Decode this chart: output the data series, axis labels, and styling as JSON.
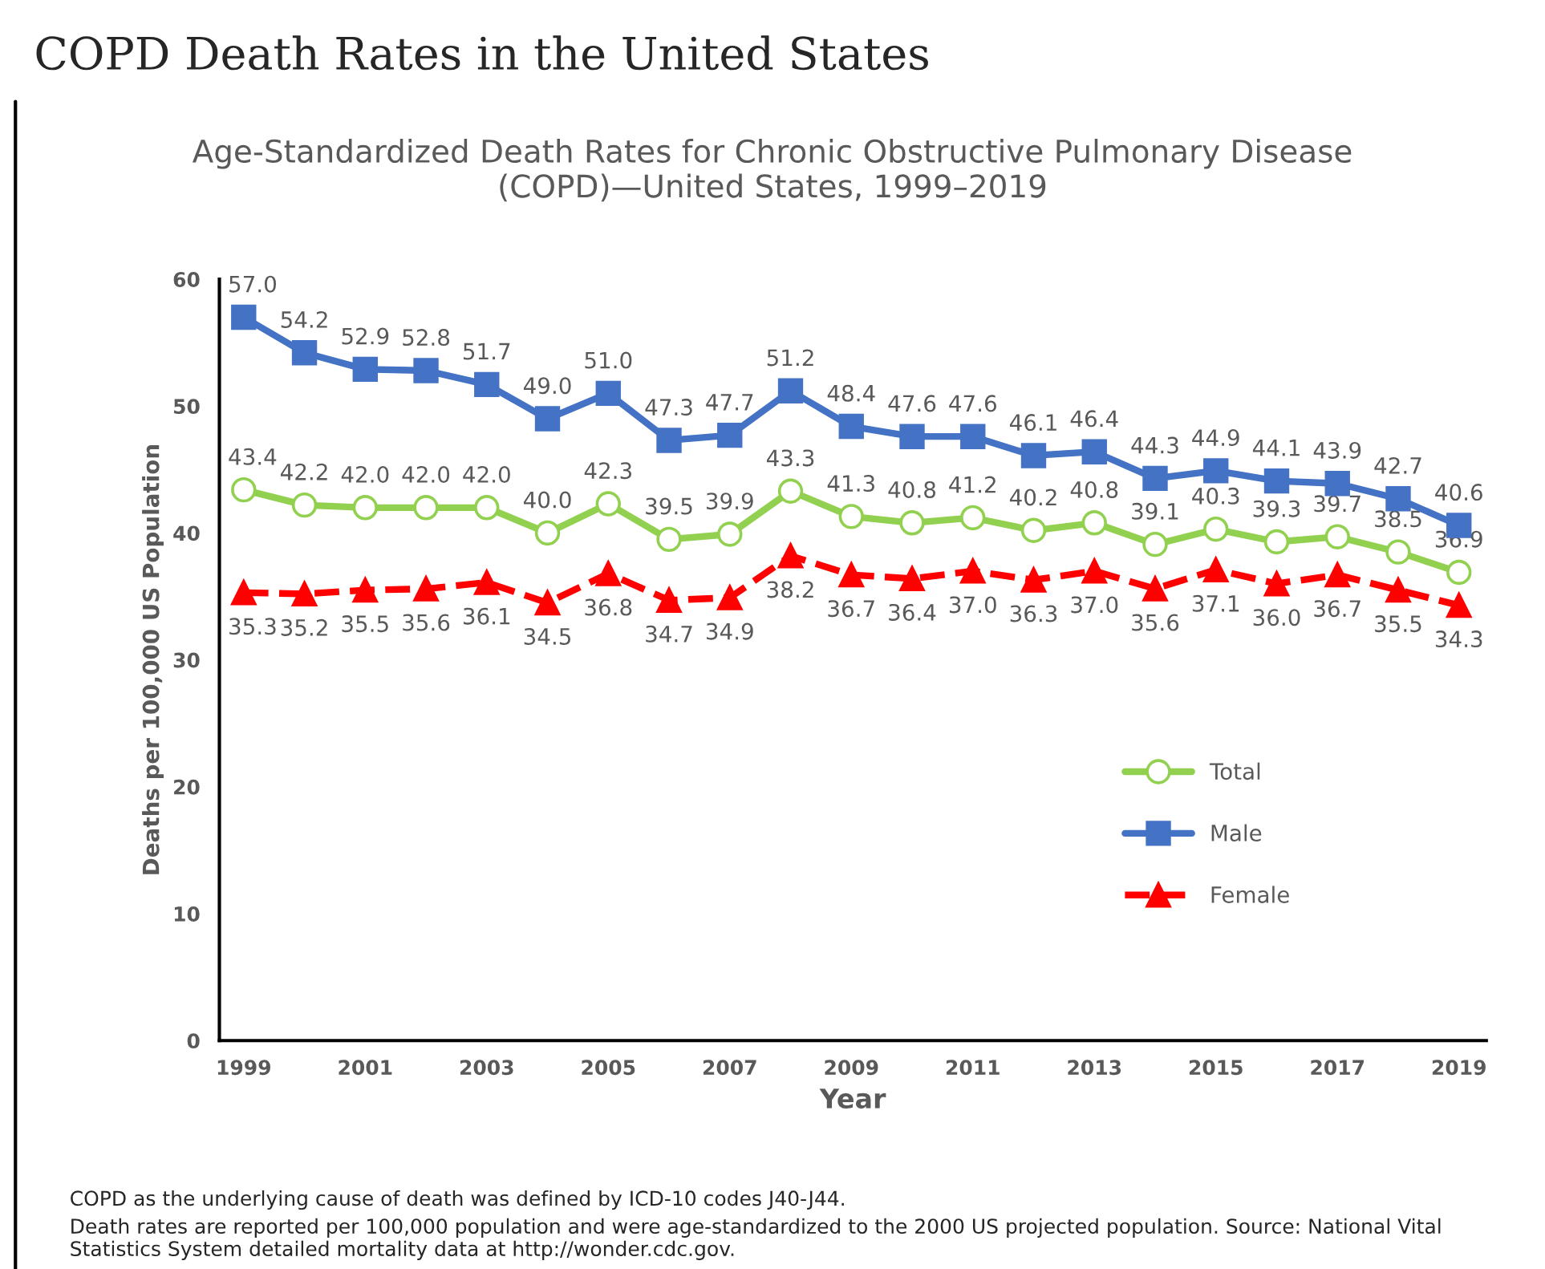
{
  "chart_data": {
    "type": "line",
    "title": "COPD Death Rates in the United States",
    "subtitle": "Age-Standardized Death Rates for Chronic Obstructive Pulmonary Disease (COPD)—United States, 1999–2019",
    "xlabel": "Year",
    "ylabel": "Deaths per 100,000 US Population",
    "x": [
      1999,
      2000,
      2001,
      2002,
      2003,
      2004,
      2005,
      2006,
      2007,
      2008,
      2009,
      2010,
      2011,
      2012,
      2013,
      2014,
      2015,
      2016,
      2017,
      2018,
      2019
    ],
    "series": [
      {
        "name": "Total",
        "color": "#92d050",
        "marker": "circle",
        "line_style": "solid",
        "values": [
          43.4,
          42.2,
          42.0,
          42.0,
          42.0,
          40.0,
          42.3,
          39.5,
          39.9,
          43.3,
          41.3,
          40.8,
          41.2,
          40.2,
          40.8,
          39.1,
          40.3,
          39.3,
          39.7,
          38.5,
          36.9
        ],
        "value_labels": [
          "43.4",
          "42.2",
          "42.0",
          "42.0",
          "42.0",
          "40.0",
          "42.3",
          "39.5",
          "39.9",
          "43.3",
          "41.3",
          "40.8",
          "41.2",
          "40.2",
          "40.8",
          "39.1",
          "40.3",
          "39.3",
          "39.7",
          "38.5",
          "36.9"
        ]
      },
      {
        "name": "Male",
        "color": "#4472c4",
        "marker": "square",
        "line_style": "solid",
        "values": [
          57.0,
          54.2,
          52.9,
          52.8,
          51.7,
          49.0,
          51.0,
          47.3,
          47.7,
          51.2,
          48.4,
          47.6,
          47.6,
          46.1,
          46.4,
          44.3,
          44.9,
          44.1,
          43.9,
          42.7,
          40.6
        ],
        "value_labels": [
          "57.0",
          "54.2",
          "52.9",
          "52.8",
          "51.7",
          "49.0",
          "51.0",
          "47.3",
          "47.7",
          "51.2",
          "48.4",
          "47.6",
          "47.6",
          "46.1",
          "46.4",
          "44.3",
          "44.9",
          "44.1",
          "43.9",
          "42.7",
          "40.6"
        ]
      },
      {
        "name": "Female",
        "color": "#ff0000",
        "marker": "triangle",
        "line_style": "dashed",
        "values": [
          35.3,
          35.2,
          35.5,
          35.6,
          36.1,
          34.5,
          36.8,
          34.7,
          34.9,
          38.2,
          36.7,
          36.4,
          37.0,
          36.3,
          37.0,
          35.6,
          37.1,
          36.0,
          36.7,
          35.5,
          34.3
        ],
        "value_labels": [
          "35.3",
          "35.2",
          "35.5",
          "35.6",
          "36.1",
          "34.5",
          "36.8",
          "34.7",
          "34.9",
          "38.2",
          "36.7",
          "36.4",
          "37.0",
          "36.3",
          "37.0",
          "35.6",
          "37.1",
          "36.0",
          "36.7",
          "35.5",
          "34.3"
        ]
      }
    ],
    "xlim": [
      1998.6,
      2019.45
    ],
    "xticks": [
      1999,
      2001,
      2003,
      2005,
      2007,
      2009,
      2011,
      2013,
      2015,
      2017,
      2019
    ],
    "ylim": [
      0,
      60
    ],
    "yticks": [
      0,
      10,
      20,
      30,
      40,
      50,
      60
    ],
    "legend": "center right",
    "grid": false,
    "annotations": [
      "COPD as the underlying cause of death was defined by ICD-10 codes J40-J44.",
      "Death rates are reported per 100,000 population and were age-standardized to the 2000 US projected population. Source: National Vital Statistics System detailed mortality data at http://wonder.cdc.gov."
    ]
  }
}
